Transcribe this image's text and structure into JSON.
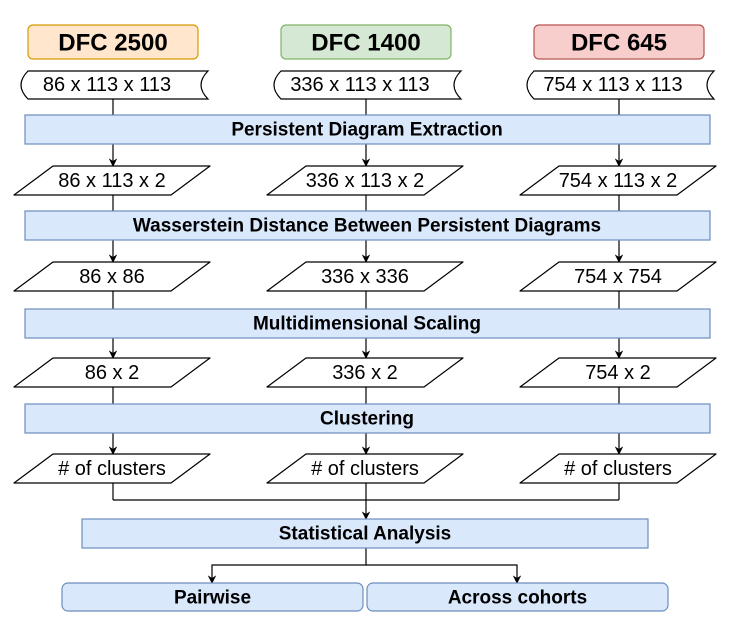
{
  "cohorts": [
    {
      "name": "DFC 2500",
      "input": "86 x 113 x 113",
      "diagrams": "86 x 113 x 2",
      "distance": "86 x 86",
      "mds": "86 x 2",
      "clusters": "# of clusters",
      "fill": "#ffe6cc",
      "stroke": "#d79b00"
    },
    {
      "name": "DFC 1400",
      "input": "336 x 113 x 113",
      "diagrams": "336 x 113 x 2",
      "distance": "336 x 336",
      "mds": "336 x 2",
      "clusters": "# of clusters",
      "fill": "#d5e8d4",
      "stroke": "#82b366"
    },
    {
      "name": "DFC 645",
      "input": "754 x 113 x 113",
      "diagrams": "754 x 113 x 2",
      "distance": "754 x 754",
      "mds": "754 x 2",
      "clusters": "# of clusters",
      "fill": "#f8cecc",
      "stroke": "#b85450"
    }
  ],
  "steps": [
    "Persistent Diagram Extraction",
    "Wasserstein Distance Between Persistent Diagrams",
    "Multidimensional Scaling",
    "Clustering"
  ],
  "analysis": {
    "title": "Statistical Analysis",
    "outputs": [
      "Pairwise",
      "Across cohorts"
    ]
  },
  "colors": {
    "process_fill": "#dae8fc",
    "process_stroke": "#6c8ebf"
  }
}
